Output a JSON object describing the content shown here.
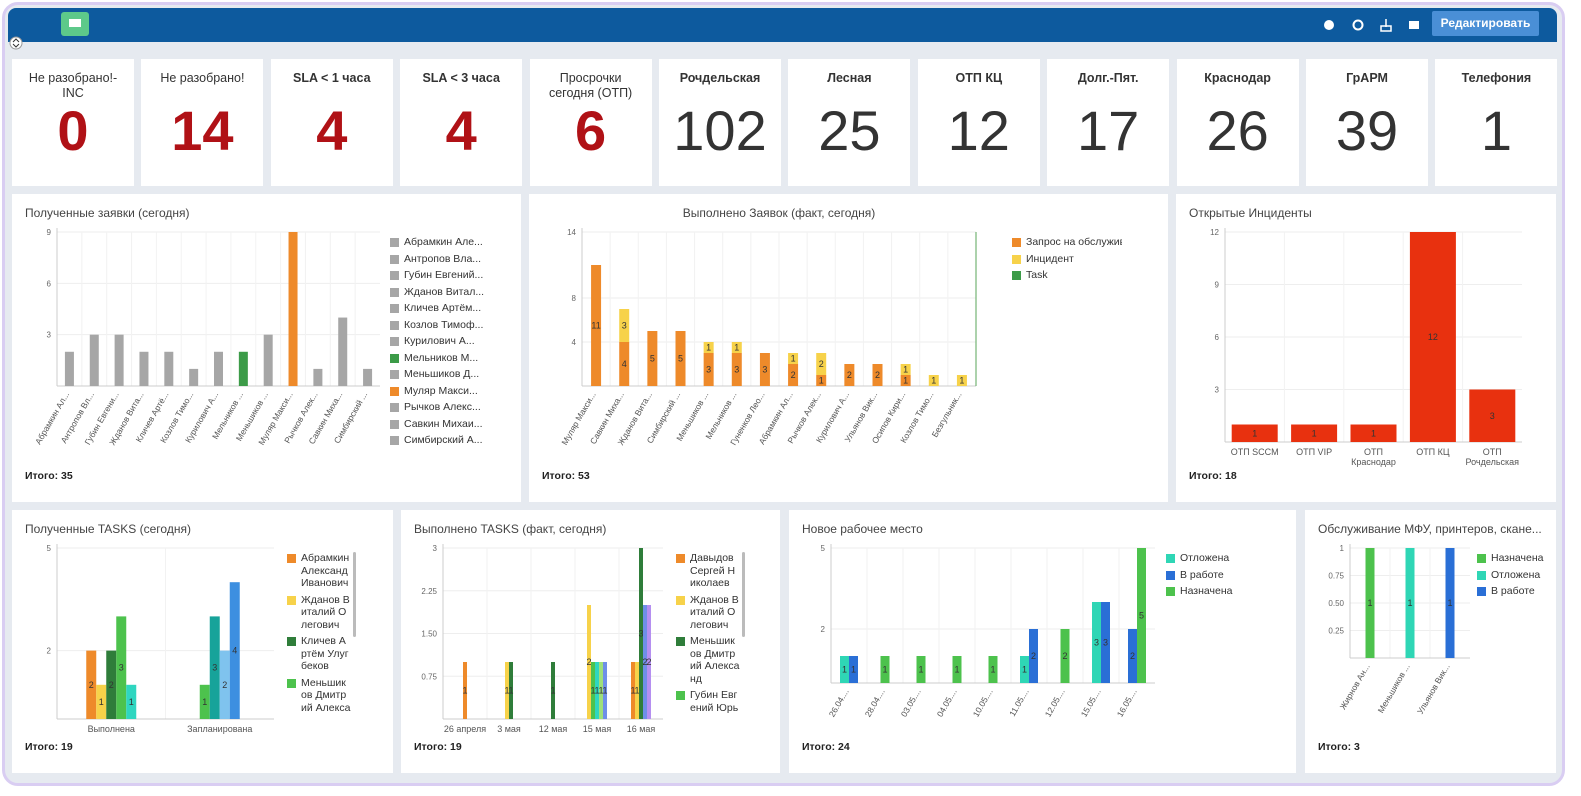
{
  "header": {
    "button": "Редактировать"
  },
  "kpis": [
    {
      "label": "Не разобрано!-INC",
      "value": 0,
      "color": "#b01116",
      "bold": false
    },
    {
      "label": "Не разобрано!",
      "value": 14,
      "color": "#b01116",
      "bold": false
    },
    {
      "label": "SLA < 1 часа",
      "value": 4,
      "color": "#b01116",
      "bold": true
    },
    {
      "label": "SLA < 3 часа",
      "value": 4,
      "color": "#b01116",
      "bold": true
    },
    {
      "label": "Просрочки сегодня (ОТП)",
      "value": 6,
      "color": "#b01116",
      "bold": false
    },
    {
      "label": "Рочдельская",
      "value": 102,
      "color": "#333333",
      "bold": true
    },
    {
      "label": "Лесная",
      "value": 25,
      "color": "#333333",
      "bold": true
    },
    {
      "label": "ОТП КЦ",
      "value": 12,
      "color": "#333333",
      "bold": true
    },
    {
      "label": "Долг.-Пят.",
      "value": 17,
      "color": "#333333",
      "bold": true
    },
    {
      "label": "Краснодар",
      "value": 26,
      "color": "#333333",
      "bold": true
    },
    {
      "label": "ГрАРМ",
      "value": 39,
      "color": "#333333",
      "bold": true
    },
    {
      "label": "Телефония",
      "value": 1,
      "color": "#333333",
      "bold": true
    }
  ],
  "chart_data": [
    {
      "type": "bar",
      "title": "Полученные заявки (сегодня)",
      "categories": [
        "Абрамкин Ал...",
        "Антропов Вл...",
        "Губин Евгени...",
        "Жданов Вита...",
        "Кличев Артё...",
        "Козлов Тимо...",
        "Курилович А...",
        "Мельников ...",
        "Меньшиков ...",
        "Муляр Макси...",
        "Рычков Алек...",
        "Савкин Миха...",
        "Симбирский ..."
      ],
      "values": [
        2,
        3,
        3,
        2,
        2,
        1,
        2,
        2,
        3,
        9,
        1,
        4,
        1
      ],
      "colors": [
        "#a6a6a6",
        "#a6a6a6",
        "#a6a6a6",
        "#a6a6a6",
        "#a6a6a6",
        "#a6a6a6",
        "#a6a6a6",
        "#3c9b48",
        "#a6a6a6",
        "#ee8a2a",
        "#a6a6a6",
        "#a6a6a6",
        "#a6a6a6"
      ],
      "legend": [
        "Абрамкин Але...",
        "Антропов Вла...",
        "Губин Евгений...",
        "Жданов Витал...",
        "Кличев Артём...",
        "Козлов Тимоф...",
        "Курилович А...",
        "Мельников М...",
        "Меньшиков Д...",
        "Муляр Макси...",
        "Рычков Алекс...",
        "Савкин Михаи...",
        "Симбирский А..."
      ],
      "ylim": [
        0,
        9
      ],
      "yticks": [
        3,
        6,
        9
      ],
      "grid": true,
      "data_labels": false,
      "footer": "Итого: 35"
    },
    {
      "type": "stacked-bar",
      "title": "Выполнено Заявок (факт, сегодня)",
      "categories": [
        "Муляр Макси...",
        "Савкин Миха...",
        "Жданов Вита...",
        "Симбирский ...",
        "Меньшиков ...",
        "Мельников ...",
        "Гуненков Лео...",
        "Абрамкин Ал...",
        "Рычков Алек...",
        "Курилович А...",
        "Ульянов Вик...",
        "Осипов Кири...",
        "Козлов Тимо...",
        "Безгульник..."
      ],
      "series": [
        {
          "name": "Запрос на обслуживание",
          "color": "#ee8a2a",
          "values": [
            11,
            4,
            5,
            5,
            3,
            3,
            3,
            2,
            1,
            2,
            2,
            1,
            0,
            0
          ]
        },
        {
          "name": "Инцидент",
          "color": "#f7d24a",
          "values": [
            0,
            3,
            0,
            0,
            1,
            1,
            0,
            1,
            2,
            0,
            0,
            1,
            1,
            1
          ]
        },
        {
          "name": "Task",
          "color": "#3c9b48",
          "values": [
            0,
            0,
            0,
            0,
            0,
            0,
            0,
            0,
            0,
            0,
            0,
            0,
            0,
            0
          ]
        }
      ],
      "ylim": [
        0,
        14
      ],
      "yticks": [
        4,
        8,
        14
      ],
      "grid": true,
      "data_labels": true,
      "footer": "Итого: 53"
    },
    {
      "type": "bar",
      "title": "Открытые Инциденты",
      "categories": [
        "ОТП SCCM",
        "ОТП VIP",
        "ОТП Краснодар",
        "ОТП КЦ",
        "ОТП Рочдельская"
      ],
      "values": [
        1,
        1,
        1,
        12,
        3
      ],
      "color": "#e8310f",
      "ylim": [
        0,
        12
      ],
      "yticks": [
        3,
        6,
        9,
        12
      ],
      "grid": true,
      "data_labels": true,
      "footer": "Итого: 18"
    },
    {
      "type": "grouped-bar",
      "title": "Полученные TASKS (сегодня)",
      "categories": [
        "Выполнена",
        "Запланирована"
      ],
      "series": [
        {
          "name": "Абрамкин Александ Иванович",
          "color": "#ee8a2a",
          "values": [
            2,
            null
          ]
        },
        {
          "name": "Жданов Виталий Олегович",
          "color": "#f7d24a",
          "values": [
            1,
            null
          ]
        },
        {
          "name": "Кличев Артём Улугбеков",
          "color": "#2f7d3a",
          "values": [
            2,
            null
          ]
        },
        {
          "name": "Меньшиков Дмитрий Александ",
          "color": "#4dc24d",
          "values": [
            3,
            1
          ]
        },
        {
          "color": "#2fd6c0",
          "values": [
            1,
            null
          ]
        },
        {
          "color": "#17a39a",
          "values": [
            null,
            3
          ]
        },
        {
          "color": "#7fc3ee",
          "values": [
            null,
            2
          ]
        },
        {
          "color": "#3d8fe0",
          "values": [
            null,
            4
          ]
        }
      ],
      "ylim": [
        0,
        5
      ],
      "yticks": [
        2,
        5
      ],
      "grid": true,
      "data_labels": true,
      "footer": "Итого: 19"
    },
    {
      "type": "grouped-bar",
      "title": "Выполнено TASKS (факт, сегодня)",
      "categories": [
        "26 апреля",
        "3 мая",
        "12 мая",
        "15 мая",
        "16 мая"
      ],
      "series": [
        {
          "name": "Давыдов Сергей Николаев",
          "color": "#ee8a2a",
          "values": [
            1,
            null,
            null,
            null,
            1
          ]
        },
        {
          "name": "Жданов Виталий Олегович",
          "color": "#f7d24a",
          "values": [
            null,
            1,
            null,
            2,
            1
          ]
        },
        {
          "name": "Меньшиков Дмитрий Александ",
          "color": "#2f7d3a",
          "values": [
            null,
            1,
            1,
            null,
            3
          ]
        },
        {
          "name": "Губин Евгений Юрьевич",
          "color": "#4dc24d",
          "values": [
            null,
            null,
            null,
            1,
            null
          ]
        },
        {
          "color": "#2fd6c0",
          "values": [
            null,
            null,
            null,
            1,
            null
          ]
        },
        {
          "color": "#9fe07a",
          "values": [
            null,
            null,
            null,
            1,
            null
          ]
        },
        {
          "color": "#6f8fe8",
          "values": [
            null,
            null,
            null,
            1,
            2
          ]
        },
        {
          "color": "#b58ff0",
          "values": [
            null,
            null,
            null,
            null,
            2
          ]
        }
      ],
      "ylim": [
        0,
        3
      ],
      "yticks": [
        0.75,
        {
          "value": 1.5,
          "label": "1.50"
        },
        2.25,
        3
      ],
      "grid": true,
      "data_labels": true,
      "footer": "Итого: 19"
    },
    {
      "type": "grouped-bar",
      "title": "Новое рабочее место",
      "categories": [
        "26.04....",
        "28.04....",
        "03.05....",
        "04.05....",
        "10.05....",
        "11.05....",
        "12.05....",
        "15.05....",
        "16.05...."
      ],
      "series": [
        {
          "name": "Отложена",
          "color": "#2fd6b5",
          "values": [
            1,
            null,
            null,
            null,
            null,
            1,
            null,
            3,
            null
          ]
        },
        {
          "name": "В работе",
          "color": "#2a6fd6",
          "values": [
            1,
            null,
            null,
            null,
            null,
            2,
            null,
            3,
            2
          ]
        },
        {
          "name": "Назначена",
          "color": "#4dc24d",
          "values": [
            null,
            1,
            1,
            1,
            1,
            null,
            2,
            null,
            5
          ]
        }
      ],
      "ylim": [
        0,
        5
      ],
      "yticks": [
        2,
        5
      ],
      "grid": true,
      "data_labels": true,
      "footer": "Итого: 24"
    },
    {
      "type": "grouped-bar",
      "title": "Обслуживание МФУ, принтеров, скане...",
      "categories": [
        "Жирнов Ан...",
        "Меньшиков ...",
        "Ульянов Вик..."
      ],
      "series": [
        {
          "name": "Назначена",
          "color": "#4dc24d",
          "values": [
            1,
            null,
            null
          ]
        },
        {
          "name": "Отложена",
          "color": "#2fd6b5",
          "values": [
            null,
            1,
            null
          ]
        },
        {
          "name": "В работе",
          "color": "#2a6fd6",
          "values": [
            null,
            null,
            1
          ]
        }
      ],
      "ylim": [
        0,
        1
      ],
      "yticks": [
        0.25,
        {
          "value": 0.5,
          "label": "0.50"
        },
        0.75,
        1
      ],
      "grid": true,
      "data_labels": true,
      "footer": "Итого: 3"
    }
  ]
}
